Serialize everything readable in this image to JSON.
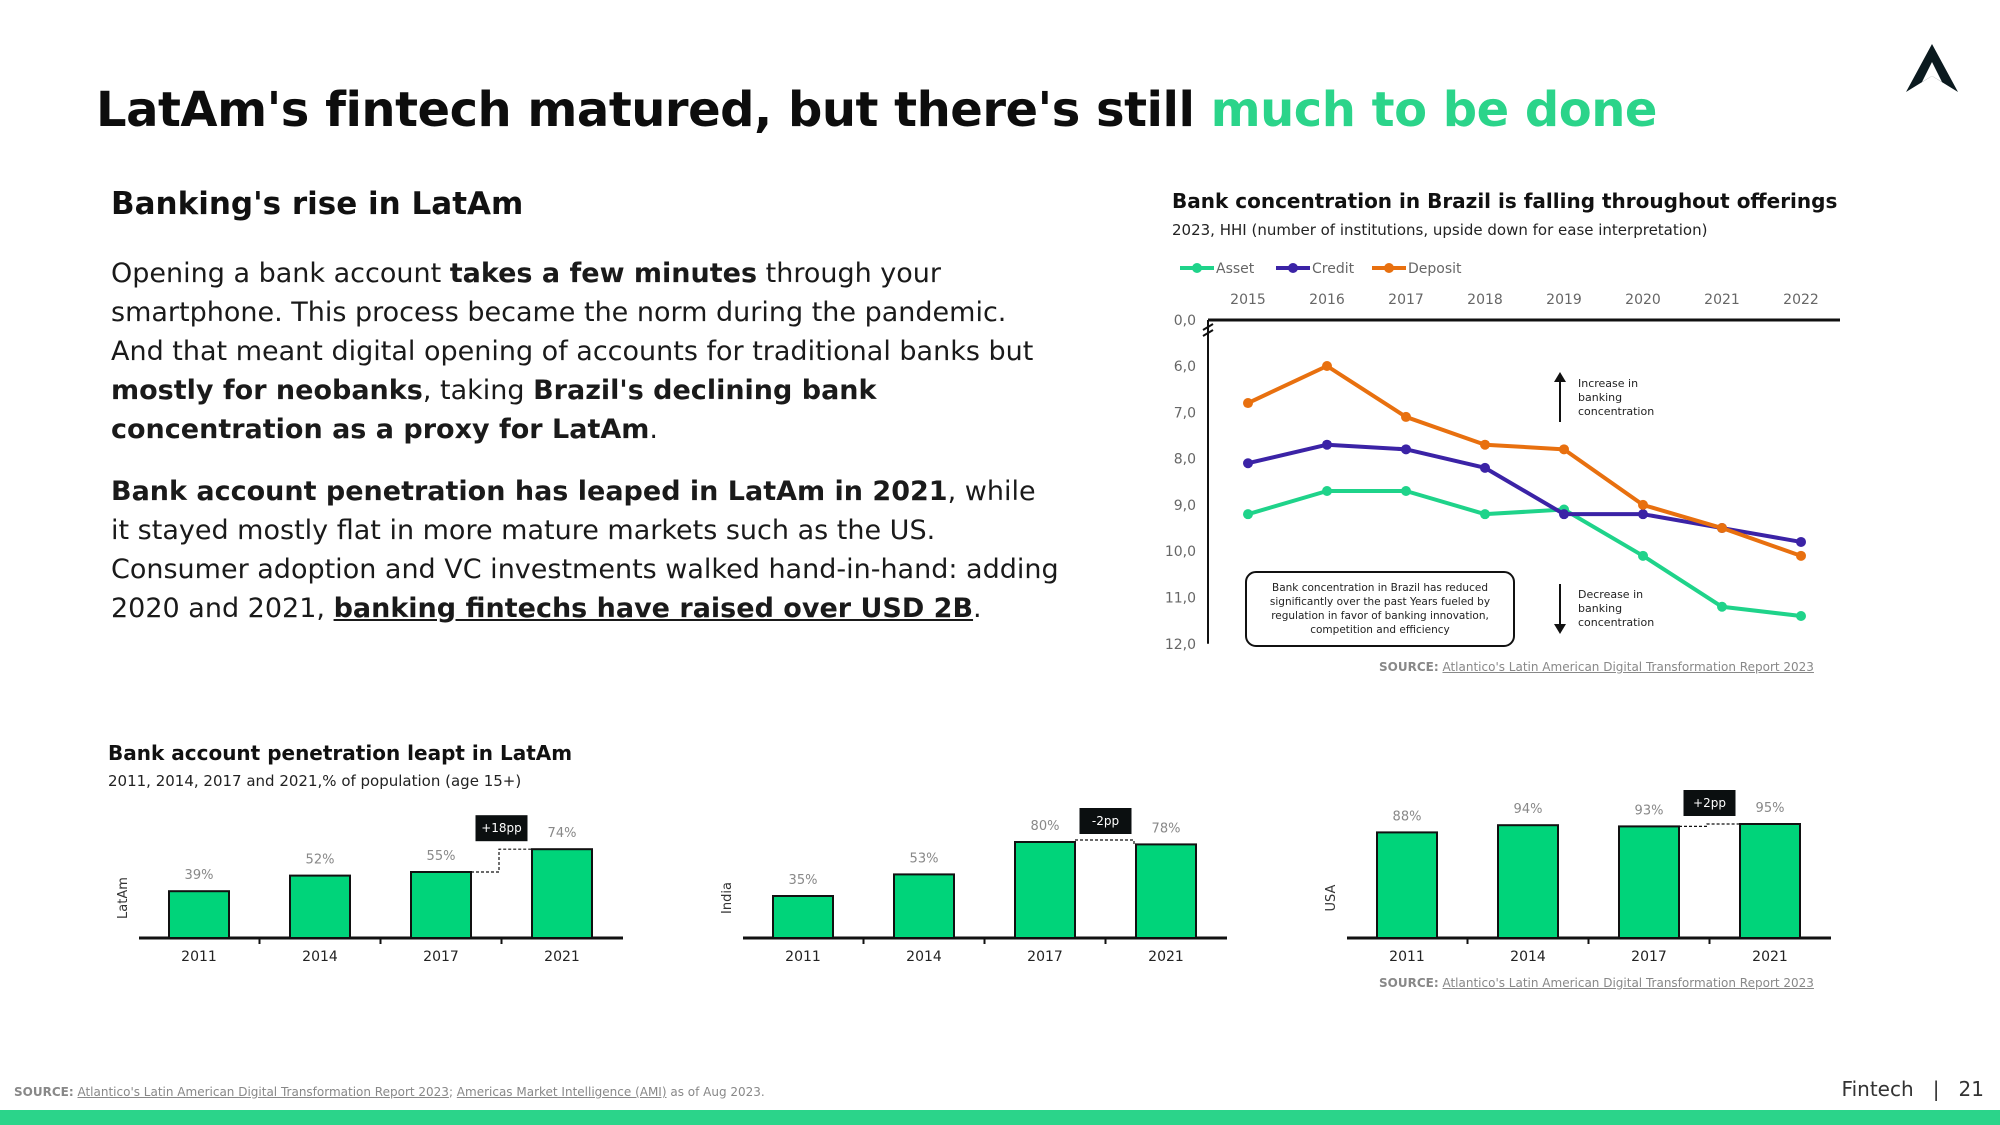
{
  "header": {
    "title_main": "LatAm's fintech matured, but there's still ",
    "title_highlight": "much to be done",
    "logo_icon": "atlantico-a-logo"
  },
  "left_text": {
    "section_title": "Banking's rise in LatAm",
    "p1": [
      {
        "t": "Opening a bank account ",
        "s": "n"
      },
      {
        "t": "takes a few minutes",
        "s": "b"
      },
      {
        "t": " through your smartphone. This process became the norm during the pandemic. And that meant digital opening of accounts for traditional banks but ",
        "s": "n"
      },
      {
        "t": "mostly for neobanks",
        "s": "b"
      },
      {
        "t": ", taking ",
        "s": "n"
      },
      {
        "t": "Brazil's declining bank concentration as a proxy for LatAm",
        "s": "b"
      },
      {
        "t": ".",
        "s": "n"
      }
    ],
    "p2": [
      {
        "t": "Bank account penetration has leaped in LatAm in 2021",
        "s": "b"
      },
      {
        "t": ", while it stayed mostly flat in more mature markets such as the US. Consumer adoption and VC investments walked hand-in-hand: adding 2020 and 2021, ",
        "s": "n"
      },
      {
        "t": "banking fintechs have raised over USD 2B",
        "s": "u"
      },
      {
        "t": ".",
        "s": "n"
      }
    ]
  },
  "line_chart_text": {
    "title": "Bank concentration in Brazil is falling throughout offerings",
    "subtitle": "2023, HHI (number of institutions, upside down for ease interpretation)",
    "source_label": "SOURCE:",
    "source_link": "Atlantico's Latin American Digital Transformation Report 2023"
  },
  "bar_chart_text": {
    "title": "Bank account penetration leapt in LatAm",
    "subtitle": "2011, 2014, 2017 and 2021,% of population (age 15+)",
    "source_label": "SOURCE:",
    "source_link": "Atlantico's Latin American Digital Transformation Report 2023"
  },
  "footer": {
    "source_label": "SOURCE:",
    "source_link1": "Atlantico's Latin American Digital Transformation Report 2023",
    "source_sep": "; ",
    "source_link2": "Americas Market Intelligence (AMI)",
    "source_tail": " as of Aug 2023.",
    "section": "Fintech",
    "separator": "|",
    "page": "21"
  },
  "colors": {
    "green": "#2bd48a",
    "bar_green": "#00d47a",
    "asset": "#1fd38a",
    "credit": "#3b23a6",
    "deposit": "#e8700f"
  },
  "chart_data": [
    {
      "type": "line",
      "title": "Bank concentration in Brazil is falling throughout offerings",
      "subtitle": "2023, HHI (number of institutions, upside down for ease interpretation)",
      "x": [
        "2015",
        "2016",
        "2017",
        "2018",
        "2019",
        "2020",
        "2021",
        "2022"
      ],
      "y_ticks": [
        "0,0",
        "6,0",
        "7,0",
        "8,0",
        "9,0",
        "10,0",
        "11,0",
        "12,0"
      ],
      "y_axis_reversed": true,
      "y_axis_break": "between 0,0 and 6,0",
      "legend_position": "top-left",
      "series": [
        {
          "name": "Asset",
          "color": "#1fd38a",
          "values": [
            9.2,
            8.7,
            8.7,
            9.2,
            9.1,
            10.1,
            11.2,
            11.4
          ]
        },
        {
          "name": "Credit",
          "color": "#3b23a6",
          "values": [
            8.1,
            7.7,
            7.8,
            8.2,
            9.2,
            9.2,
            9.5,
            9.8
          ]
        },
        {
          "name": "Deposit",
          "color": "#e8700f",
          "values": [
            6.8,
            6.0,
            7.1,
            7.7,
            7.8,
            9.0,
            9.5,
            10.1
          ]
        }
      ],
      "annotations": [
        {
          "text": "Increase in banking concentration",
          "arrow": "up"
        },
        {
          "text": "Decrease in banking concentration",
          "arrow": "down"
        },
        {
          "text": "Bank concentration in Brazil has reduced significantly over the past Years fueled by regulation in favor of banking innovation, competition and efficiency",
          "boxed": true
        }
      ]
    },
    {
      "type": "bar",
      "title": "Bank account penetration leapt in LatAm",
      "ylabel": "LatAm",
      "categories": [
        "2011",
        "2014",
        "2017",
        "2021"
      ],
      "values": [
        39,
        52,
        55,
        74
      ],
      "labels": [
        "39%",
        "52%",
        "55%",
        "74%"
      ],
      "delta_label": "+18pp",
      "ylim": [
        0,
        100
      ]
    },
    {
      "type": "bar",
      "ylabel": "India",
      "categories": [
        "2011",
        "2014",
        "2017",
        "2021"
      ],
      "values": [
        35,
        53,
        80,
        78
      ],
      "labels": [
        "35%",
        "53%",
        "80%",
        "78%"
      ],
      "delta_label": "-2pp",
      "ylim": [
        0,
        100
      ]
    },
    {
      "type": "bar",
      "ylabel": "USA",
      "categories": [
        "2011",
        "2014",
        "2017",
        "2021"
      ],
      "values": [
        88,
        94,
        93,
        95
      ],
      "labels": [
        "88%",
        "94%",
        "93%",
        "95%"
      ],
      "delta_label": "+2pp",
      "ylim": [
        0,
        100
      ]
    }
  ]
}
